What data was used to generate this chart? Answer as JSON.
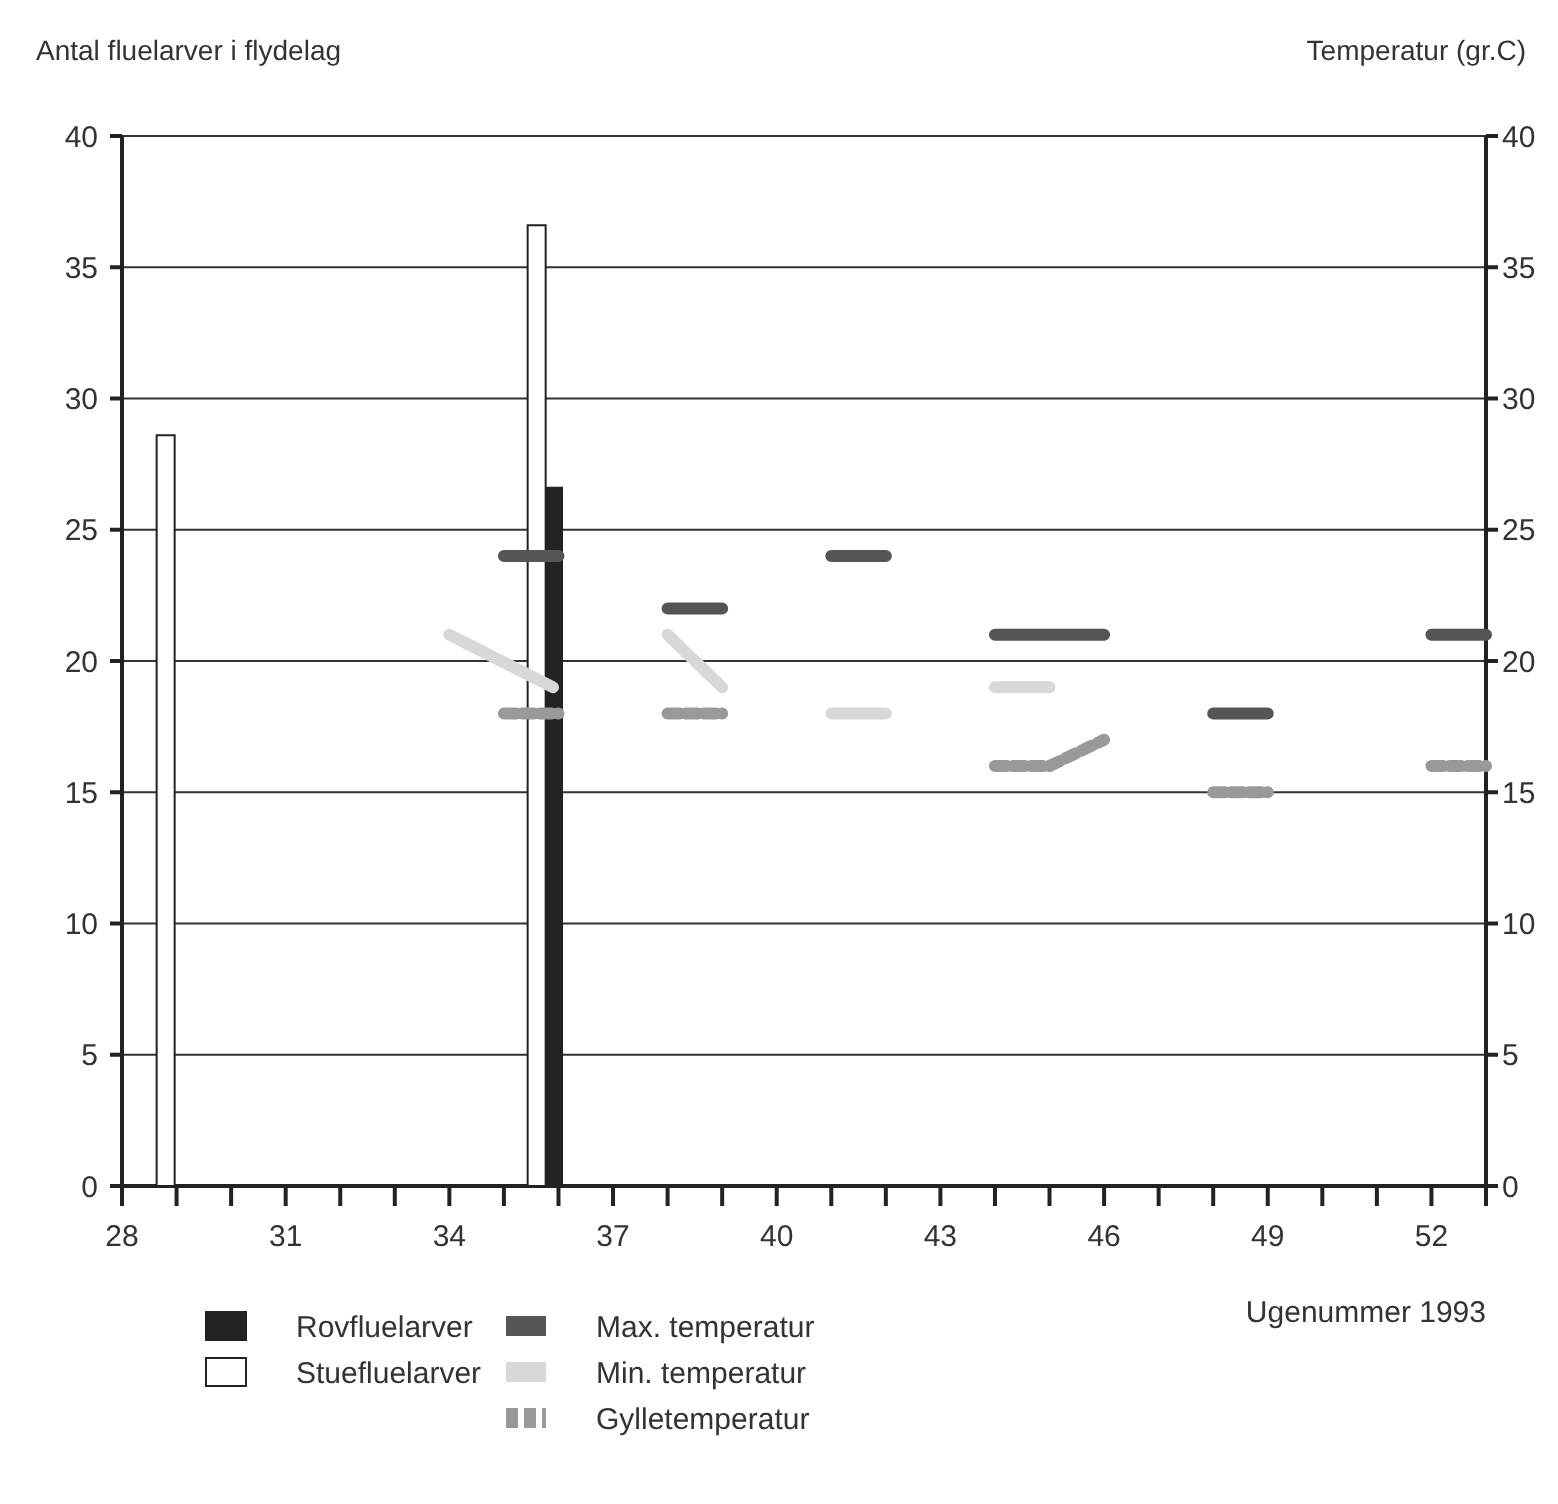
{
  "chart_data": {
    "type": "bar",
    "ylabel": "Antal fluelarver i flydelag",
    "y2label": "Temperatur (gr.C)",
    "xlabel": "Ugenummer 1993",
    "xlim": [
      28,
      53
    ],
    "xticks": [
      28,
      {
        "value": 29,
        "label": null
      },
      {
        "value": 30,
        "label": null
      },
      31,
      {
        "value": 32,
        "label": null
      },
      {
        "value": 33,
        "label": null
      },
      34,
      {
        "value": 35,
        "label": null
      },
      {
        "value": 36,
        "label": null
      },
      37,
      {
        "value": 38,
        "label": null
      },
      {
        "value": 39,
        "label": null
      },
      40,
      {
        "value": 41,
        "label": null
      },
      {
        "value": 42,
        "label": null
      },
      43,
      {
        "value": 44,
        "label": null
      },
      {
        "value": 45,
        "label": null
      },
      46,
      {
        "value": 47,
        "label": null
      },
      {
        "value": 48,
        "label": null
      },
      49,
      {
        "value": 50,
        "label": null
      },
      {
        "value": 51,
        "label": null
      },
      52,
      {
        "value": 53,
        "label": null
      }
    ],
    "ylim": [
      0,
      40
    ],
    "yticks": [
      0,
      5,
      10,
      15,
      20,
      25,
      30,
      35,
      40
    ],
    "y2lim": [
      0,
      40
    ],
    "y2ticks": [
      0,
      5,
      10,
      15,
      20,
      25,
      30,
      35,
      40
    ],
    "grid": "y",
    "legend": "bottom",
    "series": [
      {
        "name": "Rovfluelarver",
        "color": "#222222",
        "x": [
          35.9
        ],
        "values": [
          26.6
        ]
      },
      {
        "name": "Stuefluelarver",
        "color": "#ffffff",
        "x": [
          28.8,
          35.6
        ],
        "values": [
          28.6,
          36.6
        ]
      },
      {
        "name": "Max. temperatur",
        "type": "line",
        "color": "#555555",
        "line_style": "solid",
        "x": [
          35,
          36,
          null,
          38,
          39,
          null,
          41,
          42,
          null,
          44,
          46,
          null,
          48,
          49,
          null,
          52,
          53
        ],
        "values": [
          24,
          24,
          null,
          22,
          22,
          null,
          24,
          24,
          null,
          21,
          21,
          null,
          18,
          18,
          null,
          21,
          21
        ]
      },
      {
        "name": "Min. temperatur",
        "type": "line",
        "color": "#d8d8d8",
        "line_style": "solid",
        "x": [
          34,
          35.9,
          null,
          38,
          39,
          null,
          41,
          42,
          null,
          44,
          45
        ],
        "values": [
          21,
          19,
          null,
          21,
          19,
          null,
          18,
          18,
          null,
          19,
          19
        ]
      },
      {
        "name": "Gylletemperatur",
        "type": "line",
        "color": "#999999",
        "line_style": "dashed",
        "x": [
          35,
          36,
          null,
          38,
          39,
          null,
          44,
          45,
          46,
          null,
          48,
          49,
          null,
          52,
          53
        ],
        "values": [
          18,
          18,
          null,
          18,
          18,
          null,
          16,
          16,
          17,
          null,
          15,
          15,
          null,
          16,
          16
        ]
      }
    ]
  }
}
